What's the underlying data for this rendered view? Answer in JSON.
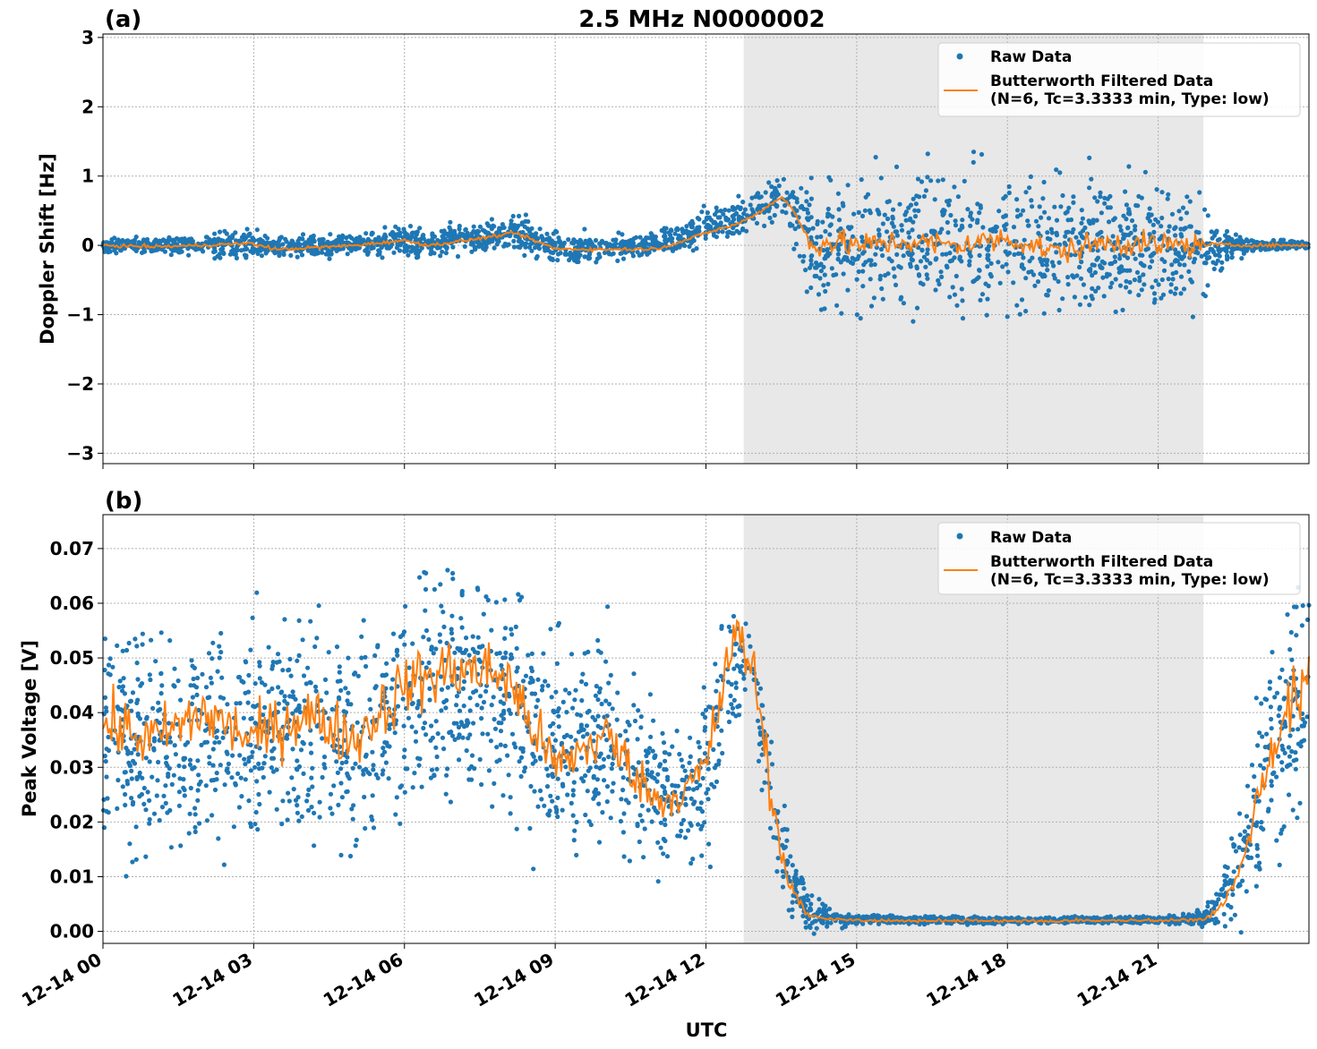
{
  "figure": {
    "title": "2.5 MHz N0000002",
    "xlabel": "UTC"
  },
  "chart_data": [
    {
      "type": "scatter",
      "panel_label": "(a)",
      "ylabel": "Doppler Shift [Hz]",
      "xlim": [
        0,
        24
      ],
      "ylim": [
        -3.15,
        3.05
      ],
      "yticks": [
        -3,
        -2,
        -1,
        0,
        1,
        2,
        3
      ],
      "ytick_labels": [
        "−3",
        "−2",
        "−1",
        "0",
        "1",
        "2",
        "3"
      ],
      "xticks": [
        0,
        3,
        6,
        9,
        12,
        15,
        18,
        21
      ],
      "xtick_labels": [
        "12-14 00",
        "12-14 03",
        "12-14 06",
        "12-14 09",
        "12-14 12",
        "12-14 15",
        "12-14 18",
        "12-14 21"
      ],
      "show_xtick_labels": false,
      "grid": true,
      "legend_position": "top-right",
      "shaded_span_hours": [
        12.75,
        21.9
      ],
      "legend": [
        "Raw Data",
        "Butterworth Filtered Data",
        "(N=6, Tc=3.3333 min, Type: low)"
      ],
      "series": [
        {
          "name": "Raw Data",
          "style": "points",
          "color": "#1f77b4",
          "x_hours": [
            0,
            1,
            2,
            2.9,
            3.5,
            5,
            6,
            6.5,
            7.5,
            8.2,
            9,
            10,
            11,
            11.5,
            12,
            12.6,
            13,
            13.5,
            13.7,
            14.1,
            14.5,
            15,
            16,
            17,
            18,
            19,
            20,
            21,
            21.8,
            22.1,
            22.5,
            23,
            24
          ],
          "center": [
            0,
            0,
            0,
            0.02,
            -0.04,
            0,
            0.08,
            0.02,
            0.12,
            0.2,
            -0.02,
            -0.05,
            0.02,
            0.1,
            0.25,
            0.4,
            0.5,
            0.7,
            0.6,
            0,
            0.05,
            0,
            0.05,
            0,
            0.1,
            0,
            0.05,
            0,
            0,
            -0.05,
            0,
            0,
            0
          ],
          "spread": [
            0.06,
            0.07,
            0.1,
            0.15,
            0.1,
            0.09,
            0.13,
            0.12,
            0.13,
            0.14,
            0.18,
            0.12,
            0.1,
            0.12,
            0.16,
            0.16,
            0.18,
            0.2,
            0.3,
            0.62,
            0.6,
            0.62,
            0.6,
            0.62,
            0.6,
            0.62,
            0.6,
            0.6,
            0.55,
            0.25,
            0.12,
            0.05,
            0.04
          ]
        },
        {
          "name": "Butterworth Filtered Data",
          "style": "line",
          "color": "#ff7f0e",
          "x_hours": [
            0,
            1,
            2,
            2.9,
            3.5,
            5,
            6,
            6.5,
            7.5,
            8.2,
            9,
            10,
            11,
            11.5,
            12,
            12.6,
            13,
            13.5,
            13.7,
            14.1,
            14.5,
            15,
            16,
            17,
            18,
            19,
            20,
            21,
            21.8,
            22.1,
            22.5,
            23,
            24
          ],
          "values": [
            0,
            -0.02,
            0,
            0.03,
            -0.06,
            0,
            0.07,
            0,
            0.1,
            0.18,
            -0.05,
            -0.06,
            -0.05,
            0.05,
            0.18,
            0.3,
            0.45,
            0.7,
            0.55,
            0,
            0.05,
            0,
            0.05,
            0,
            0.1,
            -0.1,
            0.05,
            0,
            0,
            0.02,
            0,
            0,
            0
          ],
          "jitter": 0.02,
          "jitter_active": 0.15
        }
      ]
    },
    {
      "type": "scatter",
      "panel_label": "(b)",
      "ylabel": "Peak Voltage [V]",
      "xlim": [
        0,
        24
      ],
      "ylim": [
        -0.0022,
        0.0762
      ],
      "yticks": [
        0,
        0.01,
        0.02,
        0.03,
        0.04,
        0.05,
        0.06,
        0.07
      ],
      "ytick_labels": [
        "0.00",
        "0.01",
        "0.02",
        "0.03",
        "0.04",
        "0.05",
        "0.06",
        "0.07"
      ],
      "xticks": [
        0,
        3,
        6,
        9,
        12,
        15,
        18,
        21
      ],
      "xtick_labels": [
        "12-14 00",
        "12-14 03",
        "12-14 06",
        "12-14 09",
        "12-14 12",
        "12-14 15",
        "12-14 18",
        "12-14 21"
      ],
      "show_xtick_labels": true,
      "grid": true,
      "legend_position": "top-right",
      "shaded_span_hours": [
        12.75,
        21.9
      ],
      "legend": [
        "Raw Data",
        "Butterworth Filtered Data",
        "(N=6, Tc=3.3333 min, Type: low)"
      ],
      "series": [
        {
          "name": "Raw Data",
          "style": "points",
          "color": "#1f77b4",
          "x_hours": [
            0,
            1,
            2,
            3,
            4,
            5,
            6,
            7,
            8,
            9,
            10,
            11,
            11.5,
            12,
            12.5,
            12.75,
            13,
            13.3,
            13.6,
            14,
            14.5,
            15,
            18,
            21,
            21.9,
            22.2,
            22.6,
            23,
            23.5,
            24
          ],
          "center": [
            0.035,
            0.033,
            0.035,
            0.036,
            0.038,
            0.035,
            0.042,
            0.045,
            0.045,
            0.035,
            0.036,
            0.025,
            0.025,
            0.028,
            0.048,
            0.05,
            0.04,
            0.025,
            0.012,
            0.004,
            0.0025,
            0.0022,
            0.002,
            0.0021,
            0.0025,
            0.005,
            0.012,
            0.025,
            0.038,
            0.045
          ],
          "spread": [
            0.014,
            0.013,
            0.013,
            0.013,
            0.013,
            0.014,
            0.013,
            0.013,
            0.013,
            0.013,
            0.012,
            0.008,
            0.007,
            0.01,
            0.01,
            0.009,
            0.008,
            0.008,
            0.005,
            0.0025,
            0.001,
            0.0005,
            0.0004,
            0.0004,
            0.001,
            0.003,
            0.008,
            0.012,
            0.014,
            0.014
          ]
        },
        {
          "name": "Butterworth Filtered Data",
          "style": "line",
          "color": "#ff7f0e",
          "x_hours": [
            0,
            1,
            2,
            3,
            4,
            5,
            6,
            7,
            8,
            9,
            10,
            11,
            11.5,
            12,
            12.5,
            12.75,
            13,
            13.3,
            13.6,
            14,
            14.5,
            15,
            18,
            21,
            21.9,
            22.2,
            22.6,
            23,
            23.5,
            24
          ],
          "values": [
            0.038,
            0.035,
            0.04,
            0.035,
            0.04,
            0.035,
            0.045,
            0.048,
            0.047,
            0.03,
            0.036,
            0.024,
            0.025,
            0.03,
            0.052,
            0.053,
            0.045,
            0.025,
            0.01,
            0.003,
            0.0022,
            0.002,
            0.0019,
            0.002,
            0.0022,
            0.004,
            0.01,
            0.025,
            0.04,
            0.045
          ],
          "jitter": 0.005,
          "jitter_active": 0.0
        }
      ]
    }
  ]
}
